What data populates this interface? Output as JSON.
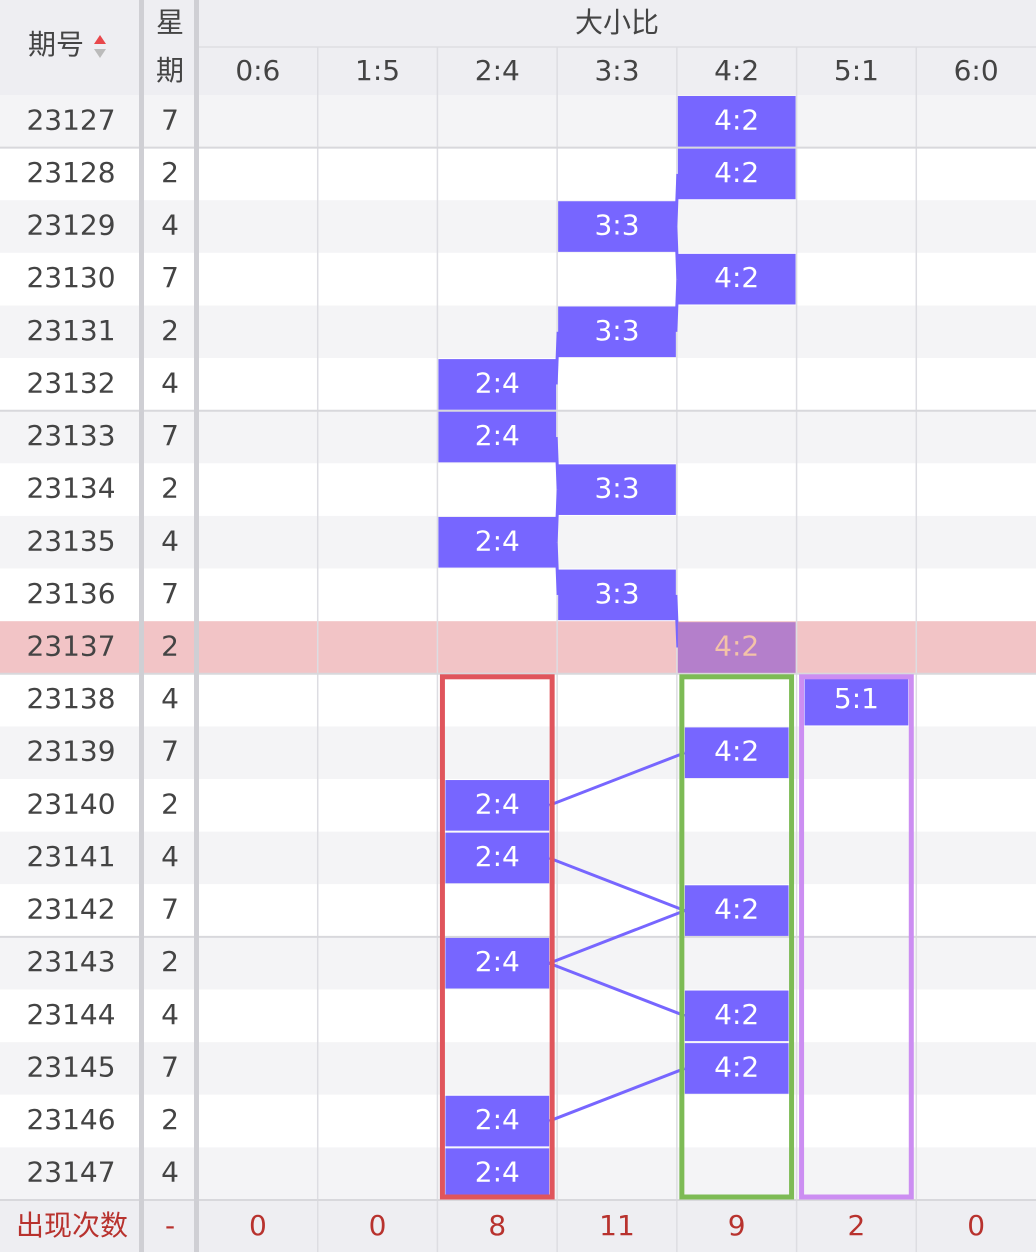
{
  "header": {
    "issue": "期号",
    "weekday": "星期",
    "group": "大小比",
    "columns": [
      "0:6",
      "1:5",
      "2:4",
      "3:3",
      "4:2",
      "5:1",
      "6:0"
    ]
  },
  "rows": [
    {
      "issue": "23127",
      "weekday": "7",
      "value": "4:2"
    },
    {
      "issue": "23128",
      "weekday": "2",
      "value": "4:2"
    },
    {
      "issue": "23129",
      "weekday": "4",
      "value": "3:3"
    },
    {
      "issue": "23130",
      "weekday": "7",
      "value": "4:2"
    },
    {
      "issue": "23131",
      "weekday": "2",
      "value": "3:3"
    },
    {
      "issue": "23132",
      "weekday": "4",
      "value": "2:4"
    },
    {
      "issue": "23133",
      "weekday": "7",
      "value": "2:4"
    },
    {
      "issue": "23134",
      "weekday": "2",
      "value": "3:3"
    },
    {
      "issue": "23135",
      "weekday": "4",
      "value": "2:4"
    },
    {
      "issue": "23136",
      "weekday": "7",
      "value": "3:3"
    },
    {
      "issue": "23137",
      "weekday": "2",
      "value": "4:2",
      "highlighted": true
    },
    {
      "issue": "23138",
      "weekday": "4",
      "value": "5:1"
    },
    {
      "issue": "23139",
      "weekday": "7",
      "value": "4:2"
    },
    {
      "issue": "23140",
      "weekday": "2",
      "value": "2:4"
    },
    {
      "issue": "23141",
      "weekday": "4",
      "value": "2:4"
    },
    {
      "issue": "23142",
      "weekday": "7",
      "value": "4:2"
    },
    {
      "issue": "23143",
      "weekday": "2",
      "value": "2:4"
    },
    {
      "issue": "23144",
      "weekday": "4",
      "value": "4:2"
    },
    {
      "issue": "23145",
      "weekday": "7",
      "value": "4:2"
    },
    {
      "issue": "23146",
      "weekday": "2",
      "value": "2:4"
    },
    {
      "issue": "23147",
      "weekday": "4",
      "value": "2:4"
    }
  ],
  "footer": {
    "label": "出现次数",
    "weekday": "-",
    "counts": [
      0,
      0,
      8,
      11,
      9,
      2,
      0
    ]
  }
}
